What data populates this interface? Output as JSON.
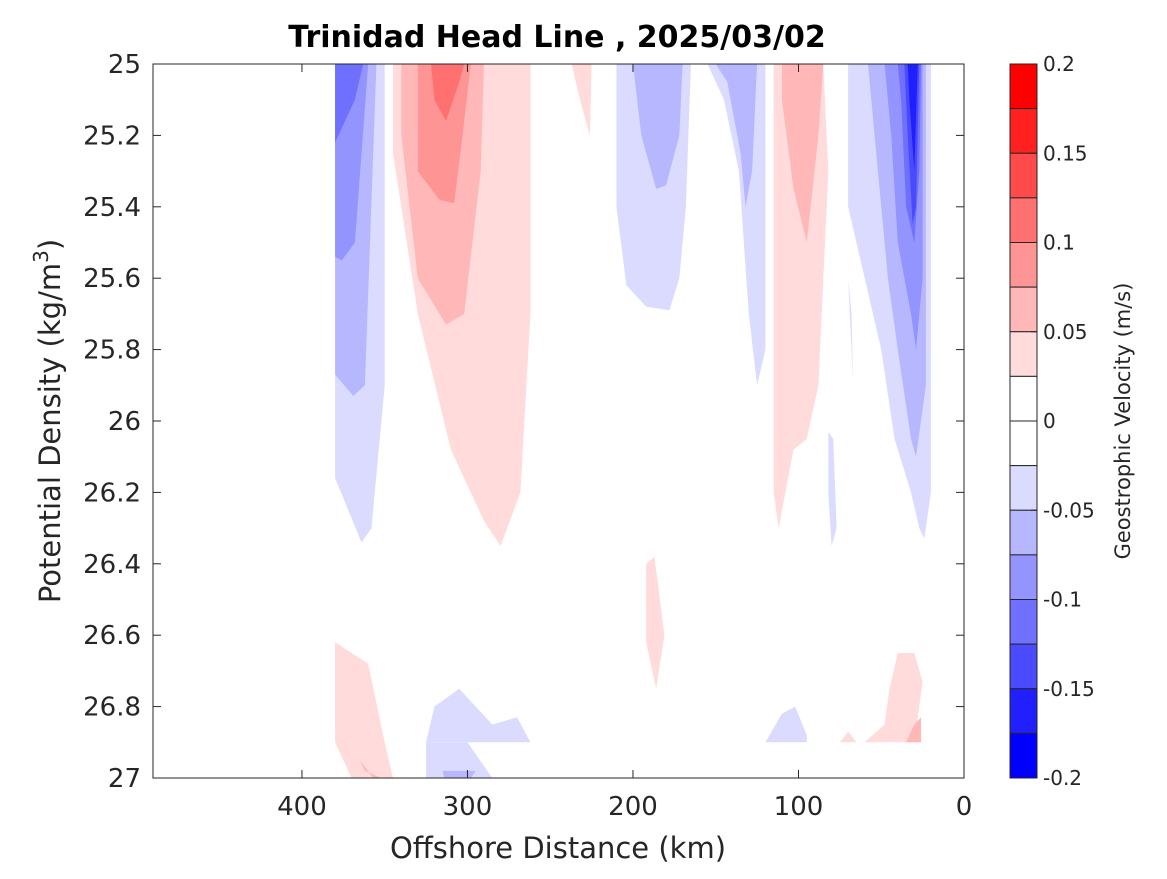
{
  "chart_data": {
    "type": "heatmap",
    "title": "Trinidad Head Line , 2025/03/02",
    "xlabel": "Offshore Distance (km)",
    "ylabel_main": "Potential Density (kg/m",
    "ylabel_sup": "3",
    "ylabel_close": ")",
    "x_axis": {
      "lim": [
        490,
        0
      ],
      "reversed": true,
      "ticks": [
        400,
        300,
        200,
        100,
        0
      ],
      "tick_labels": [
        "400",
        "300",
        "200",
        "100",
        "0"
      ]
    },
    "y_axis": {
      "lim": [
        25,
        27
      ],
      "reversed": true,
      "ticks": [
        25,
        25.2,
        25.4,
        25.6,
        25.8,
        26,
        26.2,
        26.4,
        26.6,
        26.8,
        27
      ],
      "tick_labels": [
        "25",
        "25.2",
        "25.4",
        "25.6",
        "25.8",
        "26",
        "26.2",
        "26.4",
        "26.6",
        "26.8",
        "27"
      ]
    },
    "colorbar": {
      "label": "Geostrophic Velocity (m/s)",
      "lim": [
        -0.2,
        0.2
      ],
      "ticks": [
        0.2,
        0.15,
        0.1,
        0.05,
        0,
        -0.05,
        -0.1,
        -0.15,
        -0.2
      ],
      "tick_labels": [
        "0.2",
        "0.15",
        "0.1",
        "0.05",
        "0",
        "-0.05",
        "-0.1",
        "-0.15",
        "-0.2"
      ],
      "levels": [
        {
          "range": [
            0.175,
            0.2
          ],
          "color": "#ff0000"
        },
        {
          "range": [
            0.15,
            0.175
          ],
          "color": "#ff2020"
        },
        {
          "range": [
            0.125,
            0.15
          ],
          "color": "#ff4a4a"
        },
        {
          "range": [
            0.1,
            0.125
          ],
          "color": "#ff7070"
        },
        {
          "range": [
            0.075,
            0.1
          ],
          "color": "#ff9494"
        },
        {
          "range": [
            0.05,
            0.075
          ],
          "color": "#ffb7b7"
        },
        {
          "range": [
            0.025,
            0.05
          ],
          "color": "#ffdbdb"
        },
        {
          "range": [
            0,
            0.025
          ],
          "color": "#ffffff"
        },
        {
          "range": [
            -0.025,
            0
          ],
          "color": "#ffffff"
        },
        {
          "range": [
            -0.05,
            -0.025
          ],
          "color": "#dbdbff"
        },
        {
          "range": [
            -0.075,
            -0.05
          ],
          "color": "#b7b7ff"
        },
        {
          "range": [
            -0.1,
            -0.075
          ],
          "color": "#9494ff"
        },
        {
          "range": [
            -0.125,
            -0.1
          ],
          "color": "#7070ff"
        },
        {
          "range": [
            -0.15,
            -0.125
          ],
          "color": "#4a4aff"
        },
        {
          "range": [
            -0.175,
            -0.15
          ],
          "color": "#2020ff"
        },
        {
          "range": [
            -0.2,
            -0.175
          ],
          "color": "#0000ff"
        }
      ]
    },
    "contour_regions": [
      {
        "v": -0.04,
        "pts": [
          [
            380,
            25
          ],
          [
            350,
            25
          ],
          [
            350,
            25.9
          ],
          [
            358,
            26.3
          ],
          [
            364,
            26.34
          ],
          [
            380,
            26.16
          ]
        ]
      },
      {
        "v": -0.06,
        "pts": [
          [
            380,
            25
          ],
          [
            355,
            25
          ],
          [
            362,
            25.9
          ],
          [
            369,
            25.93
          ],
          [
            380,
            25.87
          ]
        ]
      },
      {
        "v": -0.09,
        "pts": [
          [
            380,
            25
          ],
          [
            360,
            25
          ],
          [
            368,
            25.5
          ],
          [
            376,
            25.55
          ],
          [
            380,
            25.54
          ]
        ]
      },
      {
        "v": -0.11,
        "pts": [
          [
            380,
            25
          ],
          [
            363,
            25
          ],
          [
            368,
            25.1
          ],
          [
            380,
            25.22
          ]
        ]
      },
      {
        "v": 0.04,
        "pts": [
          [
            345,
            25
          ],
          [
            262,
            25
          ],
          [
            262,
            25.7
          ],
          [
            268,
            26.2
          ],
          [
            280,
            26.35
          ],
          [
            290,
            26.28
          ],
          [
            310,
            26.08
          ],
          [
            330,
            25.7
          ],
          [
            345,
            25.25
          ]
        ]
      },
      {
        "v": 0.06,
        "pts": [
          [
            340,
            25
          ],
          [
            290,
            25
          ],
          [
            292,
            25.3
          ],
          [
            297,
            25.5
          ],
          [
            302,
            25.7
          ],
          [
            313,
            25.73
          ],
          [
            330,
            25.6
          ],
          [
            340,
            25.2
          ]
        ]
      },
      {
        "v": 0.09,
        "pts": [
          [
            330,
            25
          ],
          [
            298,
            25
          ],
          [
            303,
            25.2
          ],
          [
            308,
            25.39
          ],
          [
            317,
            25.38
          ],
          [
            330,
            25.3
          ]
        ]
      },
      {
        "v": 0.11,
        "pts": [
          [
            322,
            25
          ],
          [
            302,
            25
          ],
          [
            305,
            25.05
          ],
          [
            313,
            25.16
          ],
          [
            320,
            25.1
          ]
        ]
      },
      {
        "v": 0.04,
        "pts": [
          [
            237,
            25
          ],
          [
            225,
            25
          ],
          [
            226,
            25.2
          ],
          [
            232,
            25.1
          ]
        ]
      },
      {
        "v": -0.04,
        "pts": [
          [
            210,
            25
          ],
          [
            165,
            25
          ],
          [
            168,
            25.4
          ],
          [
            172,
            25.6
          ],
          [
            178,
            25.69
          ],
          [
            192,
            25.68
          ],
          [
            204,
            25.62
          ],
          [
            210,
            25.4
          ]
        ]
      },
      {
        "v": -0.06,
        "pts": [
          [
            200,
            25
          ],
          [
            170,
            25
          ],
          [
            172,
            25.2
          ],
          [
            180,
            25.34
          ],
          [
            186,
            25.35
          ],
          [
            195,
            25.2
          ]
        ]
      },
      {
        "v": -0.04,
        "pts": [
          [
            155,
            25
          ],
          [
            120,
            25
          ],
          [
            120,
            25.8
          ],
          [
            125,
            25.9
          ],
          [
            130,
            25.7
          ],
          [
            136,
            25.3
          ],
          [
            145,
            25.1
          ]
        ]
      },
      {
        "v": -0.06,
        "pts": [
          [
            150,
            25
          ],
          [
            125,
            25
          ],
          [
            128,
            25.3
          ],
          [
            132,
            25.4
          ],
          [
            135,
            25.25
          ],
          [
            143,
            25.05
          ]
        ]
      },
      {
        "v": 0.04,
        "pts": [
          [
            115,
            25
          ],
          [
            85,
            25
          ],
          [
            82,
            25.3
          ],
          [
            88,
            25.9
          ],
          [
            95,
            26.05
          ],
          [
            103,
            26.08
          ],
          [
            112,
            26.3
          ],
          [
            115,
            26.2
          ]
        ]
      },
      {
        "v": 0.06,
        "pts": [
          [
            110,
            25
          ],
          [
            85,
            25
          ],
          [
            88,
            25.2
          ],
          [
            95,
            25.5
          ],
          [
            103,
            25.35
          ],
          [
            110,
            25.1
          ]
        ]
      },
      {
        "v": -0.04,
        "pts": [
          [
            70,
            25
          ],
          [
            20,
            25
          ],
          [
            20,
            26.2
          ],
          [
            24,
            26.33
          ],
          [
            27,
            26.3
          ],
          [
            32,
            26.2
          ],
          [
            42,
            26.05
          ],
          [
            50,
            25.8
          ],
          [
            60,
            25.6
          ],
          [
            70,
            25.4
          ]
        ]
      },
      {
        "v": -0.06,
        "pts": [
          [
            58,
            25
          ],
          [
            23,
            25
          ],
          [
            23,
            25.9
          ],
          [
            29,
            26.1
          ],
          [
            32,
            26.05
          ],
          [
            40,
            25.8
          ],
          [
            46,
            25.6
          ],
          [
            52,
            25.3
          ]
        ]
      },
      {
        "v": -0.09,
        "pts": [
          [
            48,
            25
          ],
          [
            25,
            25
          ],
          [
            25,
            25.6
          ],
          [
            29,
            25.8
          ],
          [
            32,
            25.7
          ],
          [
            40,
            25.5
          ],
          [
            44,
            25.2
          ]
        ]
      },
      {
        "v": -0.11,
        "pts": [
          [
            40,
            25
          ],
          [
            26,
            25
          ],
          [
            27,
            25.3
          ],
          [
            30,
            25.5
          ],
          [
            35,
            25.4
          ],
          [
            38,
            25.1
          ]
        ]
      },
      {
        "v": -0.14,
        "pts": [
          [
            36,
            25
          ],
          [
            27,
            25
          ],
          [
            29,
            25.4
          ],
          [
            31,
            25.45
          ],
          [
            34,
            25.2
          ]
        ]
      },
      {
        "v": -0.16,
        "pts": [
          [
            34,
            25
          ],
          [
            28,
            25
          ],
          [
            30,
            25.3
          ],
          [
            33,
            25.1
          ]
        ]
      },
      {
        "v": -0.04,
        "pts": [
          [
            82,
            26.03
          ],
          [
            79,
            26.05
          ],
          [
            77,
            26.3
          ],
          [
            80,
            26.35
          ],
          [
            82,
            26.2
          ]
        ]
      },
      {
        "v": -0.04,
        "pts": [
          [
            70,
            25.6
          ],
          [
            68,
            25.8
          ],
          [
            67,
            25.9
          ],
          [
            68,
            25.7
          ]
        ]
      },
      {
        "v": 0.04,
        "pts": [
          [
            192,
            26.4
          ],
          [
            187,
            26.38
          ],
          [
            181,
            26.6
          ],
          [
            186,
            26.75
          ],
          [
            192,
            26.62
          ]
        ]
      },
      {
        "v": 0.04,
        "pts": [
          [
            380,
            26.62
          ],
          [
            365,
            26.72
          ],
          [
            352,
            26.95
          ],
          [
            350,
            27
          ],
          [
            345,
            27
          ],
          [
            357,
            26.9
          ],
          [
            372,
            26.82
          ],
          [
            380,
            26.85
          ]
        ]
      },
      {
        "v": 0.04,
        "pts": [
          [
            380,
            26.62
          ],
          [
            360,
            26.68
          ],
          [
            350,
            26.9
          ],
          [
            345,
            27
          ],
          [
            370,
            27
          ],
          [
            380,
            26.9
          ]
        ]
      },
      {
        "v": 0.06,
        "pts": [
          [
            365,
            26.95
          ],
          [
            357,
            27
          ],
          [
            352,
            27
          ],
          [
            362,
            26.98
          ]
        ]
      },
      {
        "v": -0.04,
        "pts": [
          [
            325,
            26.9
          ],
          [
            320,
            26.8
          ],
          [
            305,
            26.75
          ],
          [
            285,
            26.85
          ],
          [
            270,
            26.83
          ],
          [
            262,
            26.9
          ],
          [
            325,
            26.9
          ]
        ]
      },
      {
        "v": -0.04,
        "pts": [
          [
            325,
            26.9
          ],
          [
            300,
            26.9
          ],
          [
            285,
            27
          ],
          [
            325,
            27
          ]
        ]
      },
      {
        "v": -0.06,
        "pts": [
          [
            315,
            26.98
          ],
          [
            295,
            26.98
          ],
          [
            298,
            27
          ],
          [
            314,
            27
          ]
        ]
      },
      {
        "v": -0.04,
        "pts": [
          [
            120,
            26.9
          ],
          [
            110,
            26.82
          ],
          [
            102,
            26.8
          ],
          [
            95,
            26.88
          ],
          [
            95,
            26.9
          ]
        ]
      },
      {
        "v": 0.04,
        "pts": [
          [
            75,
            26.9
          ],
          [
            70,
            26.87
          ],
          [
            65,
            26.9
          ]
        ]
      },
      {
        "v": 0.04,
        "pts": [
          [
            60,
            26.9
          ],
          [
            48,
            26.85
          ],
          [
            45,
            26.75
          ],
          [
            40,
            26.65
          ],
          [
            30,
            26.65
          ],
          [
            25,
            26.73
          ],
          [
            30,
            26.9
          ]
        ]
      },
      {
        "v": 0.06,
        "pts": [
          [
            35,
            26.9
          ],
          [
            30,
            26.85
          ],
          [
            26,
            26.83
          ],
          [
            26,
            26.9
          ]
        ]
      }
    ]
  }
}
